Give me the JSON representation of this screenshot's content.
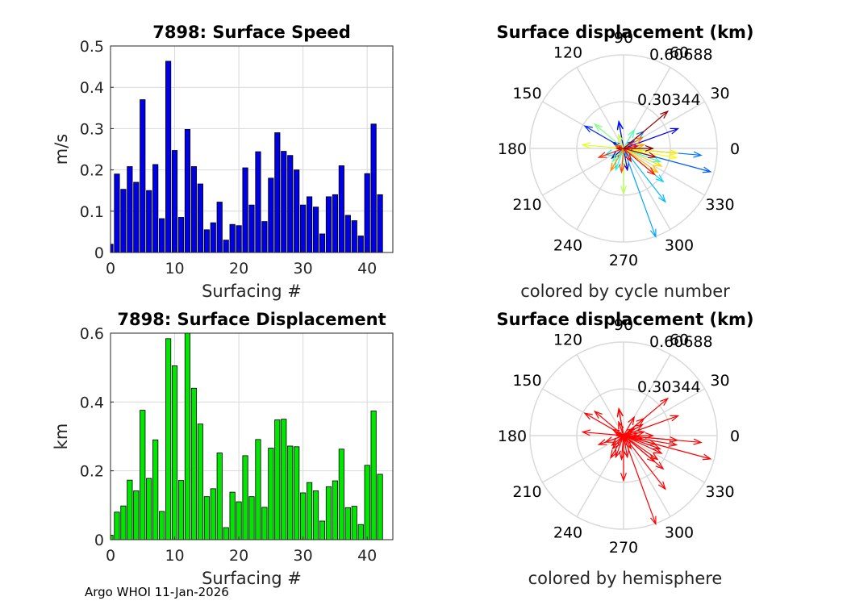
{
  "footer": "Argo WHOI 11-Jan-2026",
  "colors": {
    "speed_bar": "#0000e6",
    "disp_bar": "#00e600",
    "grid": "#d9d9d9",
    "hemisphere_arrow": "#ff0000"
  },
  "chart_data": [
    {
      "type": "bar",
      "title": "7898: Surface Speed",
      "xlabel": "Surfacing #",
      "ylabel": "m/s",
      "xlim": [
        0,
        44
      ],
      "ylim": [
        0,
        0.5
      ],
      "xticks": [
        "0",
        "10",
        "20",
        "30",
        "40"
      ],
      "yticks": [
        "0",
        "0.1",
        "0.2",
        "0.3",
        "0.4",
        "0.5"
      ],
      "categories": [
        0,
        1,
        2,
        3,
        4,
        5,
        6,
        7,
        8,
        9,
        10,
        11,
        12,
        13,
        14,
        15,
        16,
        17,
        18,
        19,
        20,
        21,
        22,
        23,
        24,
        25,
        26,
        27,
        28,
        29,
        30,
        31,
        32,
        33,
        34,
        35,
        36,
        37,
        38,
        39,
        40,
        41,
        42
      ],
      "values": [
        0.02,
        0.19,
        0.153,
        0.208,
        0.17,
        0.37,
        0.15,
        0.213,
        0.082,
        0.463,
        0.247,
        0.085,
        0.298,
        0.208,
        0.166,
        0.055,
        0.072,
        0.122,
        0.03,
        0.068,
        0.065,
        0.205,
        0.115,
        0.244,
        0.075,
        0.18,
        0.29,
        0.245,
        0.235,
        0.2,
        0.115,
        0.135,
        0.11,
        0.045,
        0.135,
        0.14,
        0.21,
        0.09,
        0.077,
        0.04,
        0.191,
        0.311,
        0.14
      ]
    },
    {
      "type": "bar",
      "title": "7898: Surface Displacement",
      "xlabel": "Surfacing #",
      "ylabel": "km",
      "xlim": [
        0,
        44
      ],
      "ylim": [
        0,
        0.6
      ],
      "xticks": [
        "0",
        "10",
        "20",
        "30",
        "40"
      ],
      "yticks": [
        "0",
        "0.2",
        "0.4",
        "0.6"
      ],
      "categories": [
        0,
        1,
        2,
        3,
        4,
        5,
        6,
        7,
        8,
        9,
        10,
        11,
        12,
        13,
        14,
        15,
        16,
        17,
        18,
        19,
        20,
        21,
        22,
        23,
        24,
        25,
        26,
        27,
        28,
        29,
        30,
        31,
        32,
        33,
        34,
        35,
        36,
        37,
        38,
        39,
        40,
        41,
        42
      ],
      "values": [
        0.013,
        0.08,
        0.098,
        0.173,
        0.142,
        0.376,
        0.178,
        0.29,
        0.082,
        0.584,
        0.505,
        0.172,
        0.61,
        0.44,
        0.336,
        0.125,
        0.148,
        0.252,
        0.035,
        0.138,
        0.11,
        0.244,
        0.125,
        0.291,
        0.094,
        0.266,
        0.348,
        0.35,
        0.272,
        0.27,
        0.136,
        0.166,
        0.142,
        0.054,
        0.154,
        0.171,
        0.263,
        0.093,
        0.097,
        0.044,
        0.216,
        0.374,
        0.19
      ]
    },
    {
      "type": "compass",
      "title": "Surface displacement (km)",
      "xlabel": "colored by cycle number",
      "rmax": 0.60688,
      "rticks": [
        "0.30344",
        "0.60688"
      ],
      "angle_labels": [
        "0",
        "30",
        "60",
        "90",
        "120",
        "150",
        "180",
        "210",
        "240",
        "270",
        "300",
        "330"
      ],
      "coloring": "cycle",
      "vectors": [
        {
          "r": 0.013,
          "deg": 60
        },
        {
          "r": 0.08,
          "deg": 150
        },
        {
          "r": 0.098,
          "deg": 220
        },
        {
          "r": 0.173,
          "deg": 100
        },
        {
          "r": 0.142,
          "deg": 280
        },
        {
          "r": 0.376,
          "deg": 20
        },
        {
          "r": 0.178,
          "deg": 100
        },
        {
          "r": 0.29,
          "deg": 150
        },
        {
          "r": 0.082,
          "deg": 35
        },
        {
          "r": 0.584,
          "deg": 345
        },
        {
          "r": 0.505,
          "deg": 355
        },
        {
          "r": 0.172,
          "deg": 40
        },
        {
          "r": 0.61,
          "deg": 290
        },
        {
          "r": 0.44,
          "deg": 308
        },
        {
          "r": 0.336,
          "deg": 320
        },
        {
          "r": 0.125,
          "deg": 200
        },
        {
          "r": 0.148,
          "deg": 250
        },
        {
          "r": 0.252,
          "deg": 340
        },
        {
          "r": 0.035,
          "deg": 270
        },
        {
          "r": 0.138,
          "deg": 60
        },
        {
          "r": 0.11,
          "deg": 230
        },
        {
          "r": 0.244,
          "deg": 140
        },
        {
          "r": 0.125,
          "deg": 350
        },
        {
          "r": 0.291,
          "deg": 270
        },
        {
          "r": 0.094,
          "deg": 110
        },
        {
          "r": 0.266,
          "deg": 175
        },
        {
          "r": 0.348,
          "deg": 350
        },
        {
          "r": 0.35,
          "deg": 355
        },
        {
          "r": 0.272,
          "deg": 335
        },
        {
          "r": 0.27,
          "deg": 325
        },
        {
          "r": 0.136,
          "deg": 10
        },
        {
          "r": 0.166,
          "deg": 240
        },
        {
          "r": 0.142,
          "deg": 30
        },
        {
          "r": 0.054,
          "deg": 160
        },
        {
          "r": 0.154,
          "deg": 265
        },
        {
          "r": 0.171,
          "deg": 200
        },
        {
          "r": 0.263,
          "deg": 320
        },
        {
          "r": 0.093,
          "deg": 10
        },
        {
          "r": 0.097,
          "deg": 300
        },
        {
          "r": 0.044,
          "deg": 180
        },
        {
          "r": 0.216,
          "deg": 345
        },
        {
          "r": 0.374,
          "deg": 40
        },
        {
          "r": 0.19,
          "deg": 0
        }
      ]
    },
    {
      "type": "compass",
      "title": "Surface displacement (km)",
      "xlabel": "colored by hemisphere",
      "rmax": 0.60688,
      "rticks": [
        "0.30344",
        "0.60688"
      ],
      "angle_labels": [
        "0",
        "30",
        "60",
        "90",
        "120",
        "150",
        "180",
        "210",
        "240",
        "270",
        "300",
        "330"
      ],
      "coloring": "hemisphere"
    }
  ]
}
